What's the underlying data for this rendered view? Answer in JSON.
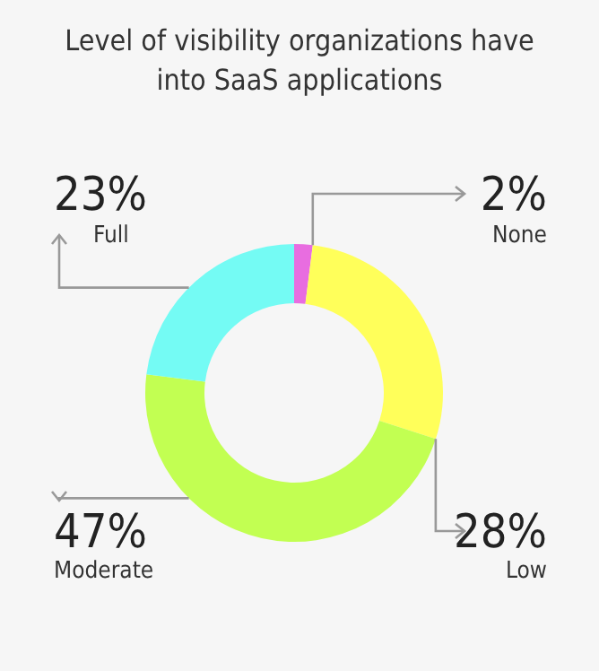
{
  "chart_data": {
    "type": "donut",
    "title": "Level of visibility organizations have into SaaS applications",
    "categories": [
      "None",
      "Low",
      "Moderate",
      "Full"
    ],
    "values": [
      2,
      28,
      47,
      23
    ],
    "colors": [
      "#e86de0",
      "#ffff5a",
      "#c2ff52",
      "#74fbf4"
    ],
    "value_labels": [
      "2%",
      "28%",
      "47%",
      "23%"
    ]
  }
}
